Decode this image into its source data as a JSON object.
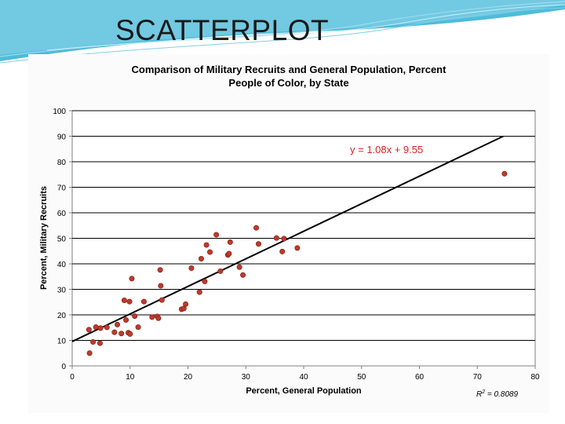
{
  "slide": {
    "title": "SCATTERPLOT"
  },
  "colors": {
    "accent": "#2aa7c9",
    "points": "#c0392b",
    "equation": "#e02020"
  },
  "chart_data": {
    "type": "scatter",
    "title_line1": "Comparison of Military Recruits and General Population, Percent",
    "title_line2": "People of Color, by State",
    "xlabel": "Percent, General Population",
    "ylabel": "Percent, Military Recruits",
    "xlim": [
      0,
      80
    ],
    "ylim": [
      0,
      100
    ],
    "xticks": [
      0,
      10,
      20,
      30,
      40,
      50,
      60,
      70,
      80
    ],
    "yticks": [
      0,
      10,
      20,
      30,
      40,
      50,
      60,
      70,
      80,
      90,
      100
    ],
    "grid": "horizontal",
    "equation": "y = 1.08x + 9.55",
    "r2_label": "R",
    "r2_exponent": "2",
    "r2_value": " = 0.8089",
    "trendline": {
      "slope": 1.08,
      "intercept": 9.55
    },
    "points": [
      {
        "x": 2.9,
        "y": 14.2
      },
      {
        "x": 3.0,
        "y": 5.0
      },
      {
        "x": 3.6,
        "y": 9.4
      },
      {
        "x": 4.1,
        "y": 15.2
      },
      {
        "x": 4.8,
        "y": 8.9
      },
      {
        "x": 4.9,
        "y": 14.8
      },
      {
        "x": 6.0,
        "y": 15.1
      },
      {
        "x": 7.3,
        "y": 13.2
      },
      {
        "x": 7.8,
        "y": 16.2
      },
      {
        "x": 8.5,
        "y": 12.7
      },
      {
        "x": 9.0,
        "y": 25.7
      },
      {
        "x": 9.3,
        "y": 18.0
      },
      {
        "x": 9.7,
        "y": 13.0
      },
      {
        "x": 9.9,
        "y": 25.2
      },
      {
        "x": 10.0,
        "y": 12.5
      },
      {
        "x": 10.3,
        "y": 34.2
      },
      {
        "x": 10.8,
        "y": 19.5
      },
      {
        "x": 11.4,
        "y": 15.2
      },
      {
        "x": 12.4,
        "y": 25.2
      },
      {
        "x": 13.8,
        "y": 19.1
      },
      {
        "x": 14.7,
        "y": 19.4
      },
      {
        "x": 14.9,
        "y": 18.7
      },
      {
        "x": 15.2,
        "y": 37.6
      },
      {
        "x": 15.3,
        "y": 31.4
      },
      {
        "x": 15.5,
        "y": 25.8
      },
      {
        "x": 18.9,
        "y": 22.2
      },
      {
        "x": 19.3,
        "y": 22.5
      },
      {
        "x": 19.6,
        "y": 24.2
      },
      {
        "x": 20.6,
        "y": 38.3
      },
      {
        "x": 22.0,
        "y": 28.9
      },
      {
        "x": 22.3,
        "y": 42.0
      },
      {
        "x": 22.9,
        "y": 33.1
      },
      {
        "x": 23.2,
        "y": 47.4
      },
      {
        "x": 23.8,
        "y": 44.6
      },
      {
        "x": 24.9,
        "y": 51.4
      },
      {
        "x": 25.6,
        "y": 37.1
      },
      {
        "x": 26.9,
        "y": 43.5
      },
      {
        "x": 27.1,
        "y": 44.0
      },
      {
        "x": 27.3,
        "y": 48.5
      },
      {
        "x": 28.9,
        "y": 38.7
      },
      {
        "x": 29.5,
        "y": 35.6
      },
      {
        "x": 31.8,
        "y": 54.1
      },
      {
        "x": 32.2,
        "y": 47.8
      },
      {
        "x": 35.3,
        "y": 50.1
      },
      {
        "x": 36.3,
        "y": 44.8
      },
      {
        "x": 36.6,
        "y": 49.9
      },
      {
        "x": 38.9,
        "y": 46.2
      },
      {
        "x": 74.7,
        "y": 75.3
      }
    ]
  }
}
